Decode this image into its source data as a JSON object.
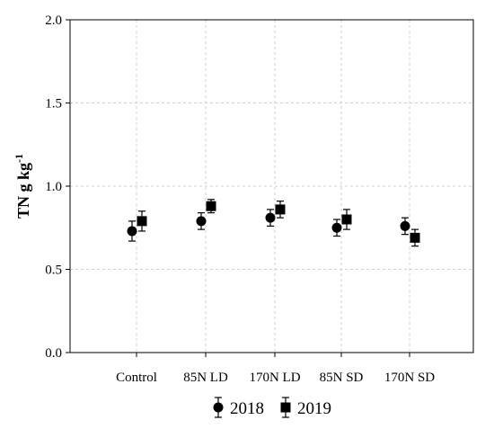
{
  "chart_data": {
    "type": "scatter",
    "ylabel": "TN g kg",
    "ylabel_superscript": "-1",
    "categories": [
      "Control",
      "85N LD",
      "170N LD",
      "85N SD",
      "170N SD"
    ],
    "ylim": [
      0,
      2.0
    ],
    "yticks": [
      "0.0",
      "0.5",
      "1.0",
      "1.5",
      "2.0"
    ],
    "grid": true,
    "legend_position": "bottom-center",
    "series": [
      {
        "name": "2018",
        "marker": "circle",
        "values": [
          0.73,
          0.79,
          0.81,
          0.75,
          0.76
        ],
        "errors": [
          0.06,
          0.05,
          0.05,
          0.05,
          0.05
        ]
      },
      {
        "name": "2019",
        "marker": "square",
        "values": [
          0.79,
          0.88,
          0.86,
          0.8,
          0.69
        ],
        "errors": [
          0.06,
          0.04,
          0.05,
          0.06,
          0.05
        ]
      }
    ]
  }
}
